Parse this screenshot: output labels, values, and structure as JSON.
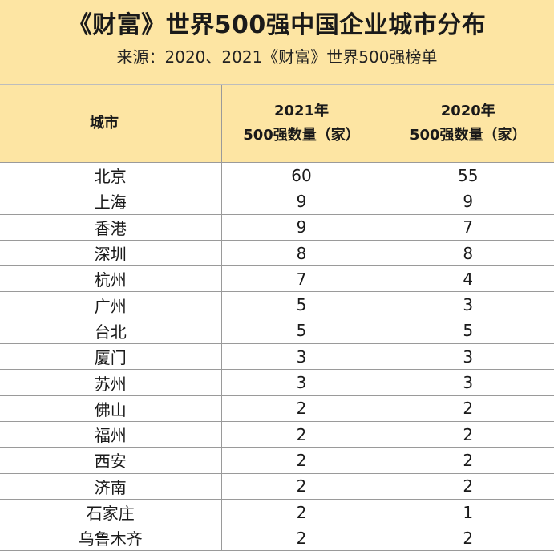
{
  "title": "《财富》世界500强中国企业城市分布",
  "subtitle": "来源：2020、2021《财富》世界500强榜单",
  "colors": {
    "header_bg": "#fde5a3",
    "grid": "#9a9a9a"
  },
  "columns": {
    "city": "城市",
    "y2021_line1": "2021年",
    "y2021_line2": "500强数量（家）",
    "y2020_line1": "2020年",
    "y2020_line2": "500强数量（家）"
  },
  "chart_data": {
    "type": "table",
    "title": "《财富》世界500强中国企业城市分布",
    "subtitle": "来源：2020、2021《财富》世界500强榜单",
    "columns": [
      "城市",
      "2021年 500强数量（家）",
      "2020年 500强数量（家）"
    ],
    "rows": [
      [
        "北京",
        60,
        55
      ],
      [
        "上海",
        9,
        9
      ],
      [
        "香港",
        9,
        7
      ],
      [
        "深圳",
        8,
        8
      ],
      [
        "杭州",
        7,
        4
      ],
      [
        "广州",
        5,
        3
      ],
      [
        "台北",
        5,
        5
      ],
      [
        "厦门",
        3,
        3
      ],
      [
        "苏州",
        3,
        3
      ],
      [
        "佛山",
        2,
        2
      ],
      [
        "福州",
        2,
        2
      ],
      [
        "西安",
        2,
        2
      ],
      [
        "济南",
        2,
        2
      ],
      [
        "石家庄",
        2,
        1
      ],
      [
        "乌鲁木齐",
        2,
        2
      ]
    ]
  }
}
